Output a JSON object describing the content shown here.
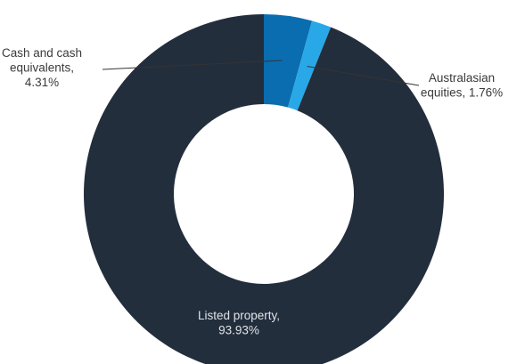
{
  "chart_data": {
    "type": "pie",
    "donut": true,
    "start_angle_deg": 0,
    "direction": "clockwise",
    "slices": [
      {
        "label_lines": [
          "Cash and cash",
          "equivalents,",
          "4.31%"
        ],
        "value": 4.31,
        "color": "#0a6db0"
      },
      {
        "label_lines": [
          "Australasian",
          "equities, 1.76%"
        ],
        "value": 1.76,
        "color": "#29a8e8"
      },
      {
        "label_lines": [
          "Listed property,",
          "93.93%"
        ],
        "value": 93.93,
        "color": "#232e3d"
      }
    ],
    "legend": "none"
  }
}
